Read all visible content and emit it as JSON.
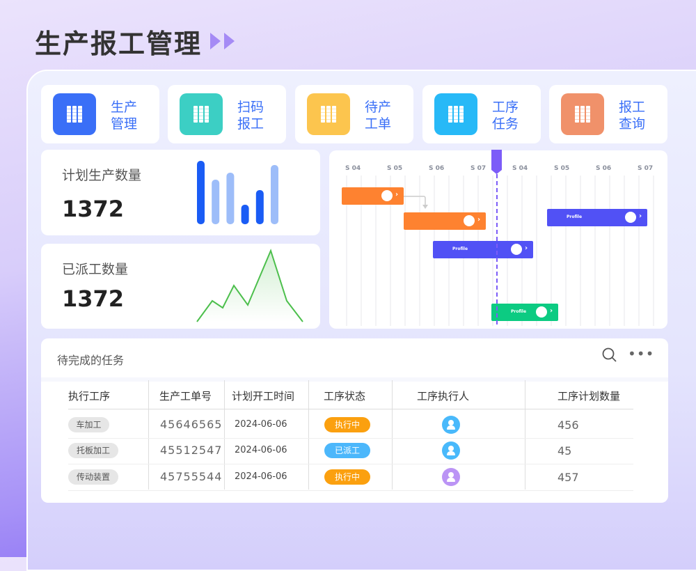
{
  "title": "生产报工管理",
  "nav": [
    {
      "label": "生产管理",
      "color": "#3a6ff7",
      "icon": "book-stack-icon"
    },
    {
      "label": "扫码报工",
      "color": "#3ccfc4",
      "icon": "book-stack-icon"
    },
    {
      "label": "待产工单",
      "color": "#fcc54e",
      "icon": "book-stack-icon"
    },
    {
      "label": "工序任务",
      "color": "#27b9f7",
      "icon": "book-stack-icon"
    },
    {
      "label": "报工查询",
      "color": "#f0916a",
      "icon": "book-stack-icon"
    }
  ],
  "stats": [
    {
      "label": "计划生产数量",
      "value": "1372",
      "chart": {
        "type": "bar",
        "values": [
          91,
          64,
          74,
          28,
          49,
          85
        ],
        "colors": [
          "#1a5cf5",
          "#9dbdf9",
          "#9dbdf9",
          "#1a5cf5",
          "#1a5cf5",
          "#9dbdf9"
        ]
      }
    },
    {
      "label": "已派工数量",
      "value": "1372",
      "chart": {
        "type": "area",
        "values": [
          0,
          30,
          20,
          52,
          24,
          102,
          30,
          0
        ],
        "color": "#4cbf4c"
      }
    }
  ],
  "gantt": {
    "headers": [
      "S 04",
      "S 05",
      "S 06",
      "S 07",
      "S 04",
      "S 05",
      "S 06",
      "S 07"
    ],
    "bars": [
      {
        "label": "",
        "color": "#fe8230"
      },
      {
        "label": "",
        "color": "#fe8230"
      },
      {
        "label": "Profile",
        "color": "#5151f5"
      },
      {
        "label": "Profile",
        "color": "#5151f5"
      },
      {
        "label": "Profile",
        "color": "#0ccb82"
      }
    ],
    "marker_color": "#7c5cf8"
  },
  "tasks": {
    "title": "待完成的任务",
    "columns": [
      "执行工序",
      "生产工单号",
      "计划开工时间",
      "工序状态",
      "工序执行人",
      "工序计划数量"
    ],
    "rows": [
      {
        "process": "车加工",
        "order": "45646565",
        "date": "2024-06-06",
        "status": "执行中",
        "status_color": "#fba00f",
        "avatar_color": "#49b9fb",
        "qty": "456"
      },
      {
        "process": "托板加工",
        "order": "45512547",
        "date": "2024-06-06",
        "status": "已派工",
        "status_color": "#4cb7fb",
        "avatar_color": "#49b9fb",
        "qty": "45"
      },
      {
        "process": "传动装置",
        "order": "45755544",
        "date": "2024-06-06",
        "status": "执行中",
        "status_color": "#fba00f",
        "avatar_color": "#bb94f5",
        "qty": "457"
      }
    ]
  }
}
